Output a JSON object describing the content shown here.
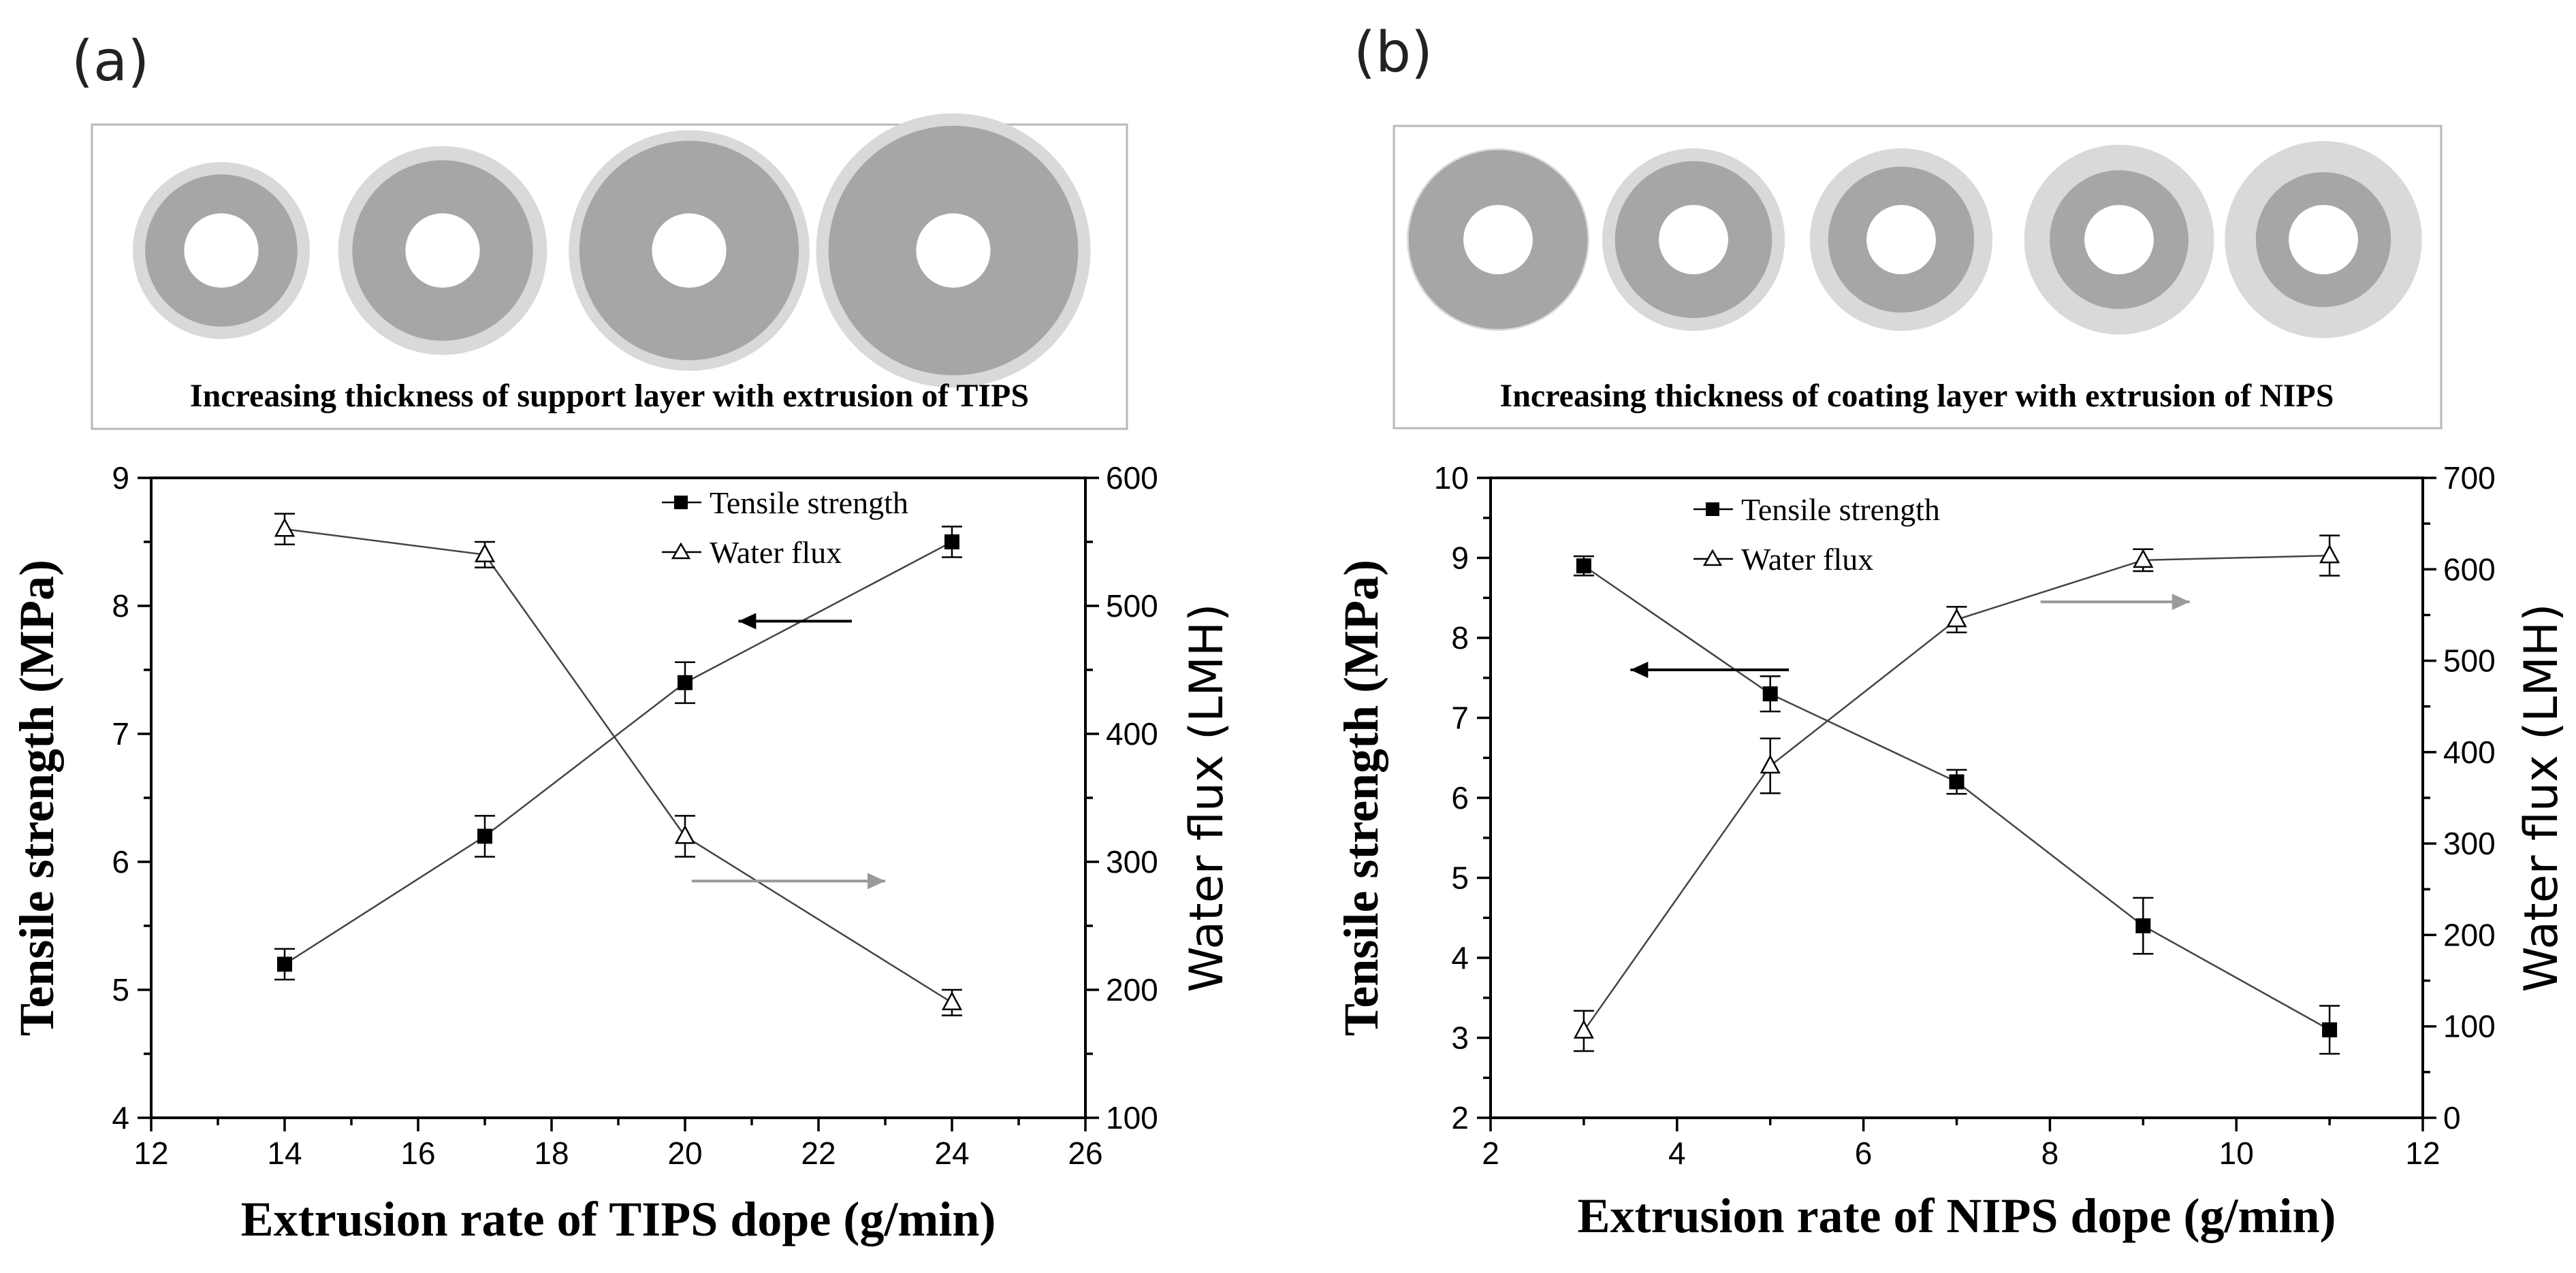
{
  "panels": [
    {
      "letter": "(a)",
      "banner": {
        "caption": "Increasing thickness of support layer with extrusion of TIPS",
        "rings": [
          {
            "outer": 1.0,
            "mid": 0.86,
            "hole": 0.42
          },
          {
            "outer": 1.18,
            "mid": 1.02,
            "hole": 0.42
          },
          {
            "outer": 1.36,
            "mid": 1.24,
            "hole": 0.42
          },
          {
            "outer": 1.55,
            "mid": 1.41,
            "hole": 0.42
          }
        ]
      }
    },
    {
      "letter": "(b)",
      "banner": {
        "caption": "Increasing thickness of coating layer with extrusion of NIPS",
        "rings": [
          {
            "outer": 1.0,
            "mid": 0.98,
            "hole": 0.38
          },
          {
            "outer": 1.0,
            "mid": 0.86,
            "hole": 0.38
          },
          {
            "outer": 1.0,
            "mid": 0.8,
            "hole": 0.38
          },
          {
            "outer": 1.04,
            "mid": 0.76,
            "hole": 0.38
          },
          {
            "outer": 1.08,
            "mid": 0.74,
            "hole": 0.38
          }
        ]
      }
    }
  ],
  "chart_data": [
    {
      "type": "line",
      "xlabel": "Extrusion rate of TIPS dope (g/min)",
      "ylabel": "Tensile strength (MPa)",
      "y2label": "Water flux (LMH)",
      "xlim": [
        12,
        26
      ],
      "ylim": [
        4,
        9
      ],
      "y2lim": [
        100,
        600
      ],
      "xticks": [
        12,
        14,
        16,
        18,
        20,
        22,
        24,
        26
      ],
      "yticks": [
        4,
        5,
        6,
        7,
        8,
        9
      ],
      "y2ticks": [
        100,
        200,
        300,
        400,
        500,
        600
      ],
      "legend_position": "top-center",
      "series": [
        {
          "name": "Tensile strength",
          "axis": "left",
          "marker": "square-filled",
          "x": [
            14,
            17,
            20,
            24
          ],
          "y": [
            5.2,
            6.2,
            7.4,
            8.5
          ],
          "err": [
            0.12,
            0.16,
            0.16,
            0.12
          ]
        },
        {
          "name": "Water flux",
          "axis": "right",
          "marker": "triangle-open",
          "x": [
            14,
            17,
            20,
            24
          ],
          "y": [
            560,
            540,
            320,
            190
          ],
          "err": [
            12,
            10,
            16,
            10
          ]
        }
      ],
      "arrows": [
        {
          "direction": "left",
          "color": "#000000",
          "x_from": 22.5,
          "x_to": 20.8,
          "y": 7.88
        },
        {
          "direction": "right",
          "color": "#9a9a9a",
          "x_from": 20.1,
          "x_to": 23.0,
          "y": 5.85
        }
      ]
    },
    {
      "type": "line",
      "xlabel": "Extrusion rate of NIPS dope (g/min)",
      "ylabel": "Tensile strength (MPa)",
      "y2label": "Water flux (LMH)",
      "xlim": [
        2,
        12
      ],
      "ylim": [
        2,
        10
      ],
      "y2lim": [
        0,
        700
      ],
      "xticks": [
        2,
        4,
        6,
        8,
        10,
        12
      ],
      "yticks": [
        2,
        3,
        4,
        5,
        6,
        7,
        8,
        9,
        10
      ],
      "y2ticks": [
        0,
        100,
        200,
        300,
        400,
        500,
        600,
        700
      ],
      "legend_position": "top-left",
      "series": [
        {
          "name": "Tensile strength",
          "axis": "left",
          "marker": "square-filled",
          "x": [
            3,
            5,
            7,
            9,
            11
          ],
          "y": [
            8.9,
            7.3,
            6.2,
            4.4,
            3.1
          ],
          "err": [
            0.12,
            0.22,
            0.15,
            0.35,
            0.3
          ]
        },
        {
          "name": "Water flux",
          "axis": "right",
          "marker": "triangle-open",
          "x": [
            3,
            5,
            7,
            9,
            11
          ],
          "y": [
            95,
            385,
            545,
            610,
            615
          ],
          "err": [
            22,
            30,
            14,
            12,
            22
          ]
        }
      ],
      "arrows": [
        {
          "direction": "left",
          "color": "#000000",
          "x_from": 5.2,
          "x_to": 3.5,
          "y": 7.6
        },
        {
          "direction": "right",
          "color": "#9a9a9a",
          "x_from": 7.9,
          "x_to": 9.5,
          "y": 8.45
        }
      ]
    }
  ]
}
